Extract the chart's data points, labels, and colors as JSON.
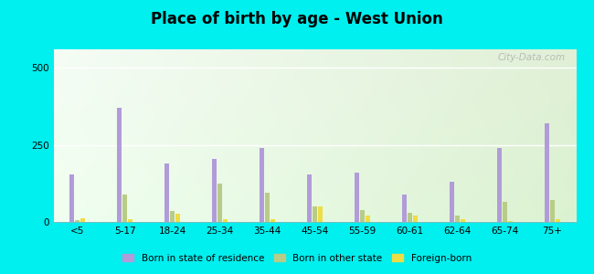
{
  "title": "Place of birth by age - West Union",
  "categories": [
    "<5",
    "5-17",
    "18-24",
    "25-34",
    "35-44",
    "45-54",
    "55-59",
    "60-61",
    "62-64",
    "65-74",
    "75+"
  ],
  "born_in_state": [
    155,
    370,
    190,
    205,
    240,
    155,
    160,
    90,
    130,
    240,
    320
  ],
  "born_other_state": [
    5,
    90,
    35,
    125,
    95,
    50,
    40,
    30,
    20,
    65,
    70
  ],
  "foreign_born": [
    12,
    8,
    28,
    8,
    8,
    50,
    22,
    22,
    8,
    4,
    8
  ],
  "colors": {
    "born_in_state": "#b19cd9",
    "born_other_state": "#b8cc88",
    "foreign_born": "#eedd44"
  },
  "ylim": [
    0,
    560
  ],
  "yticks": [
    0,
    250,
    500
  ],
  "outer_background": "#00efef",
  "legend_labels": [
    "Born in state of residence",
    "Born in other state",
    "Foreign-born"
  ],
  "watermark": "City-Data.com"
}
